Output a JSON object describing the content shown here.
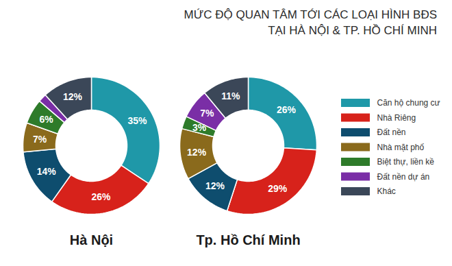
{
  "title": [
    "MỨC ĐỘ QUAN TÂM TỚI CÁC LOẠI HÌNH BĐS",
    "TẠI HÀ NỘI & TP. HỒ CHÍ MINH"
  ],
  "chart_data": [
    {
      "type": "pie",
      "title": "Hà Nội",
      "categories": [
        "Căn hộ chung cư",
        "Nhà Riêng",
        "Đất nền",
        "Nhà mặt phố",
        "Biệt thự, liền kề",
        "Đất nền dự án",
        "Khác"
      ],
      "values": [
        35,
        26,
        14,
        7,
        6,
        2,
        12
      ],
      "value_labels": [
        "35%",
        "26%",
        "14%",
        "7%",
        "6%",
        null,
        "12%"
      ],
      "colors": [
        "#1f98a8",
        "#d7221b",
        "#0e4d6e",
        "#8a6a1c",
        "#2e7b2a",
        "#7a2ea6",
        "#3b4758"
      ],
      "data_labels": true
    },
    {
      "type": "pie",
      "title": "Tp. Hồ Chí Minh",
      "categories": [
        "Căn hộ chung cư",
        "Nhà Riêng",
        "Đất nền",
        "Nhà mặt phố",
        "Biệt thự, liền kề",
        "Đất nền dự án",
        "Khác"
      ],
      "values": [
        26,
        29,
        12,
        12,
        3,
        7,
        11
      ],
      "value_labels": [
        "26%",
        "29%",
        "12%",
        "12%",
        "3%",
        "7%",
        "11%"
      ],
      "colors": [
        "#1f98a8",
        "#d7221b",
        "#0e4d6e",
        "#8a6a1c",
        "#2e7b2a",
        "#7a2ea6",
        "#3b4758"
      ],
      "data_labels": true,
      "legend": "right"
    }
  ]
}
